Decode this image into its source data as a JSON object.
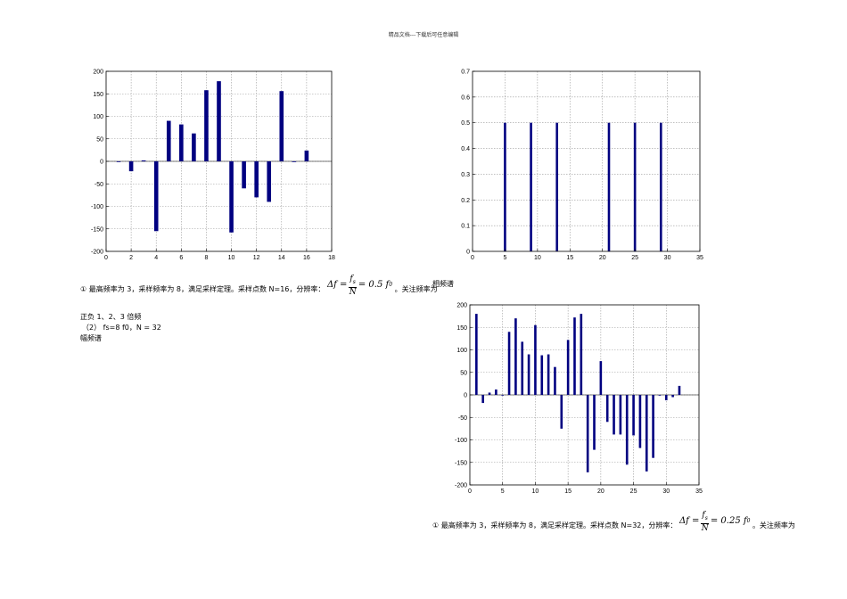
{
  "header": {
    "title": "精品文档---下载后可任意编辑"
  },
  "charts": [
    {
      "type": "bar",
      "x": [
        1,
        2,
        3,
        4,
        5,
        6,
        7,
        8,
        9,
        10,
        11,
        12,
        13,
        14,
        15,
        16
      ],
      "values": [
        0,
        -22,
        2,
        -155,
        90,
        82,
        62,
        158,
        178,
        -158,
        -60,
        -80,
        -90,
        156,
        0,
        24
      ],
      "xlim": [
        0,
        18
      ],
      "ylim": [
        -200,
        200
      ],
      "xticks": [
        0,
        2,
        4,
        6,
        8,
        10,
        12,
        14,
        16,
        18
      ],
      "yticks": [
        -200,
        -150,
        -100,
        -50,
        0,
        50,
        100,
        150,
        200
      ],
      "grid": true,
      "bar_color": "#000080"
    },
    {
      "type": "bar",
      "x": [
        5,
        9,
        13,
        21,
        25,
        29
      ],
      "values": [
        0.5,
        0.5,
        0.5,
        0.5,
        0.5,
        0.5
      ],
      "xlim": [
        0,
        35
      ],
      "ylim": [
        0,
        0.7
      ],
      "xticks": [
        0,
        5,
        10,
        15,
        20,
        25,
        30,
        35
      ],
      "yticks": [
        0,
        0.1,
        0.2,
        0.3,
        0.4,
        0.5,
        0.6,
        0.7
      ],
      "grid": true,
      "bar_color": "#000080"
    },
    {
      "type": "bar",
      "x": [
        1,
        2,
        3,
        4,
        5,
        6,
        7,
        8,
        9,
        10,
        11,
        12,
        13,
        14,
        15,
        16,
        17,
        18,
        19,
        20,
        21,
        22,
        23,
        24,
        25,
        26,
        27,
        28,
        29,
        30,
        31,
        32
      ],
      "values": [
        180,
        -18,
        5,
        12,
        0,
        140,
        170,
        118,
        90,
        155,
        88,
        90,
        62,
        -75,
        122,
        172,
        180,
        -172,
        -122,
        75,
        -60,
        -88,
        -88,
        -155,
        -90,
        -118,
        -170,
        -140,
        0,
        -12,
        -5,
        20
      ],
      "xlim": [
        0,
        35
      ],
      "ylim": [
        -200,
        200
      ],
      "xticks": [
        0,
        5,
        10,
        15,
        20,
        25,
        30,
        35
      ],
      "yticks": [
        -200,
        -150,
        -100,
        -50,
        0,
        50,
        100,
        150,
        200
      ],
      "grid": true,
      "bar_color": "#000080"
    }
  ],
  "text1": {
    "prefix": "① 最高频率为 3，采样频率为 8，满足采样定理。采样点数 N=16，分辨率：",
    "formula": {
      "lhs": "Δf =",
      "num": "f",
      "num_sub": "s",
      "den": "N",
      "rhs": "= 0.5 f",
      "rhs_sub": "0"
    },
    "suffix": "。关注频率为",
    "line2": "正负 1、2、3 倍频",
    "line3": "（2） fs=8 f0，N = 32",
    "line4": "幅频谱"
  },
  "label_phase": "相频谱",
  "text2": {
    "prefix": "① 最高频率为 3，采样频率为 8，满足采样定理。采样点数 N=32，分辨率：",
    "formula": {
      "lhs": "Δf =",
      "num": "f",
      "num_sub": "s",
      "den": "N",
      "rhs": "= 0.25 f",
      "rhs_sub": "0"
    },
    "suffix": "。关注频率为"
  }
}
